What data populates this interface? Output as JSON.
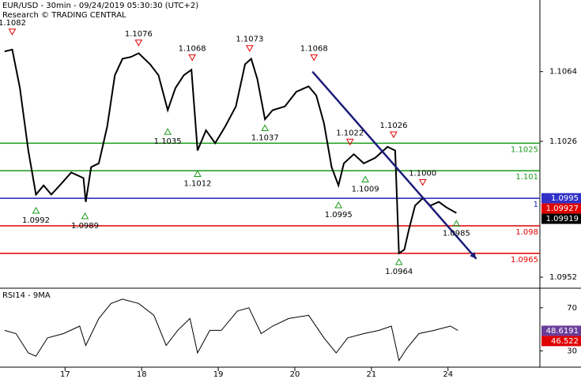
{
  "chart_data": [
    {
      "type": "line",
      "title": "EUR/USD - 30min - 09/24/2019 05:30:30 (UTC+2)",
      "subtitle": "Research © TRADING CENTRAL",
      "x": [
        -0.79,
        -0.69,
        -0.59,
        -0.48,
        -0.38,
        -0.28,
        -0.18,
        -0.07,
        0.08,
        0.24,
        0.27,
        0.34,
        0.44,
        0.55,
        0.65,
        0.75,
        0.86,
        0.96,
        1.11,
        1.22,
        1.34,
        1.44,
        1.55,
        1.65,
        1.73,
        1.84,
        1.96,
        2.09,
        2.23,
        2.35,
        2.43,
        2.51,
        2.61,
        2.71,
        2.87,
        3.02,
        3.18,
        3.28,
        3.38,
        3.48,
        3.57,
        3.64,
        3.77,
        3.9,
        4.05,
        4.21,
        4.31,
        4.36,
        4.43,
        4.49,
        4.57,
        4.67,
        4.77,
        4.88,
        4.98,
        5.11
      ],
      "values": [
        1.1075,
        1.1076,
        1.1055,
        1.1021,
        1.0997,
        1.1002,
        1.0997,
        1.1002,
        1.1009,
        1.1006,
        1.0993,
        1.1012,
        1.1014,
        1.1034,
        1.1062,
        1.1071,
        1.1072,
        1.1074,
        1.1068,
        1.1062,
        1.1043,
        1.1055,
        1.1062,
        1.1065,
        1.1021,
        1.1032,
        1.1025,
        1.1034,
        1.1045,
        1.1068,
        1.1071,
        1.106,
        1.1038,
        1.1043,
        1.1045,
        1.1053,
        1.1056,
        1.1051,
        1.1036,
        1.1012,
        1.1002,
        1.1014,
        1.1019,
        1.1014,
        1.1017,
        1.1023,
        1.1021,
        1.0965,
        1.0967,
        1.0978,
        1.0991,
        1.0995,
        1.0991,
        1.0993,
        1.099,
        1.0987
      ],
      "color": "#000000",
      "xlim": [
        -0.85,
        6.2
      ],
      "xticks": [
        {
          "value": 0,
          "label": "17"
        },
        {
          "value": 1,
          "label": "18"
        },
        {
          "value": 2,
          "label": "19"
        },
        {
          "value": 3,
          "label": "20"
        },
        {
          "value": 4,
          "label": "21"
        },
        {
          "value": 5,
          "label": "24"
        }
      ],
      "ylim": [
        1.0946,
        1.1103
      ],
      "yticks": [
        1.1064,
        1.1026,
        1.0952
      ],
      "levels": [
        {
          "value": 1.1025,
          "label": "1.1025",
          "color": "#1a9a1a"
        },
        {
          "value": 1.101,
          "label": "1.101",
          "color": "#1a9a1a"
        },
        {
          "value": 1.0995,
          "label": "1",
          "color": "#2020c0"
        },
        {
          "value": 1.098,
          "label": "1.098",
          "color": "#e00000"
        },
        {
          "value": 1.0965,
          "label": "1.0965",
          "color": "#e00000"
        }
      ],
      "price_tags": [
        {
          "value": 1.0995,
          "label": "1.0995",
          "color": "#3030c8"
        },
        {
          "value": 1.09927,
          "label": "1.09927",
          "color": "#e00000"
        },
        {
          "value": 1.09919,
          "label": "1.09919",
          "color": "#000000"
        }
      ],
      "highs": [
        {
          "x": -0.69,
          "value": 1.1082,
          "label": "1.1082"
        },
        {
          "x": 0.96,
          "value": 1.1076,
          "label": "1.1076"
        },
        {
          "x": 1.66,
          "value": 1.1068,
          "label": "1.1068"
        },
        {
          "x": 2.41,
          "value": 1.1073,
          "label": "1.1073"
        },
        {
          "x": 3.25,
          "value": 1.1068,
          "label": "1.1068"
        },
        {
          "x": 3.72,
          "value": 1.1022,
          "label": "1.1022"
        },
        {
          "x": 4.29,
          "value": 1.1026,
          "label": "1.1026"
        },
        {
          "x": 4.67,
          "value": 1.1,
          "label": "1.1000"
        }
      ],
      "lows": [
        {
          "x": -0.38,
          "value": 1.0992,
          "label": "1.0992"
        },
        {
          "x": 0.26,
          "value": 1.0989,
          "label": "1.0989"
        },
        {
          "x": 1.34,
          "value": 1.1035,
          "label": "1.1035"
        },
        {
          "x": 1.73,
          "value": 1.1012,
          "label": "1.1012"
        },
        {
          "x": 2.61,
          "value": 1.1037,
          "label": "1.1037"
        },
        {
          "x": 3.57,
          "value": 1.0995,
          "label": "1.0995"
        },
        {
          "x": 3.92,
          "value": 1.1009,
          "label": "1.1009"
        },
        {
          "x": 4.36,
          "value": 1.0964,
          "label": "1.0964"
        },
        {
          "x": 5.11,
          "value": 1.0985,
          "label": "1.0985"
        }
      ],
      "trendline": {
        "x": [
          3.23,
          5.37
        ],
        "values": [
          1.1064,
          1.0962
        ],
        "color": "#1c1c7a"
      }
    },
    {
      "type": "line",
      "title": "RSI14 - 9MA",
      "x": [
        -0.79,
        -0.64,
        -0.48,
        -0.38,
        -0.23,
        -0.02,
        0.19,
        0.27,
        0.44,
        0.6,
        0.75,
        0.96,
        1.16,
        1.32,
        1.47,
        1.63,
        1.73,
        1.89,
        2.04,
        2.25,
        2.4,
        2.56,
        2.71,
        2.92,
        3.18,
        3.38,
        3.54,
        3.69,
        3.9,
        4.1,
        4.26,
        4.36,
        4.46,
        4.62,
        4.82,
        5.03,
        5.13
      ],
      "values": [
        49,
        46,
        28,
        25,
        42,
        46,
        53,
        35,
        60,
        74,
        78,
        74,
        63,
        35,
        49,
        60,
        28,
        49,
        49,
        67,
        70,
        46,
        53,
        60,
        63,
        42,
        28,
        42,
        46,
        49,
        53,
        21,
        32,
        46,
        49,
        53,
        49
      ],
      "color": "#000000",
      "xlim": [
        -0.85,
        6.2
      ],
      "ylim": [
        17,
        86
      ],
      "yticks": [
        70,
        30
      ],
      "value_tags": [
        {
          "value": 48.6191,
          "label": "48.6191",
          "color": "#6a3d9a"
        },
        {
          "value": 46.522,
          "label": "46.522",
          "color": "#e00000"
        }
      ]
    }
  ]
}
